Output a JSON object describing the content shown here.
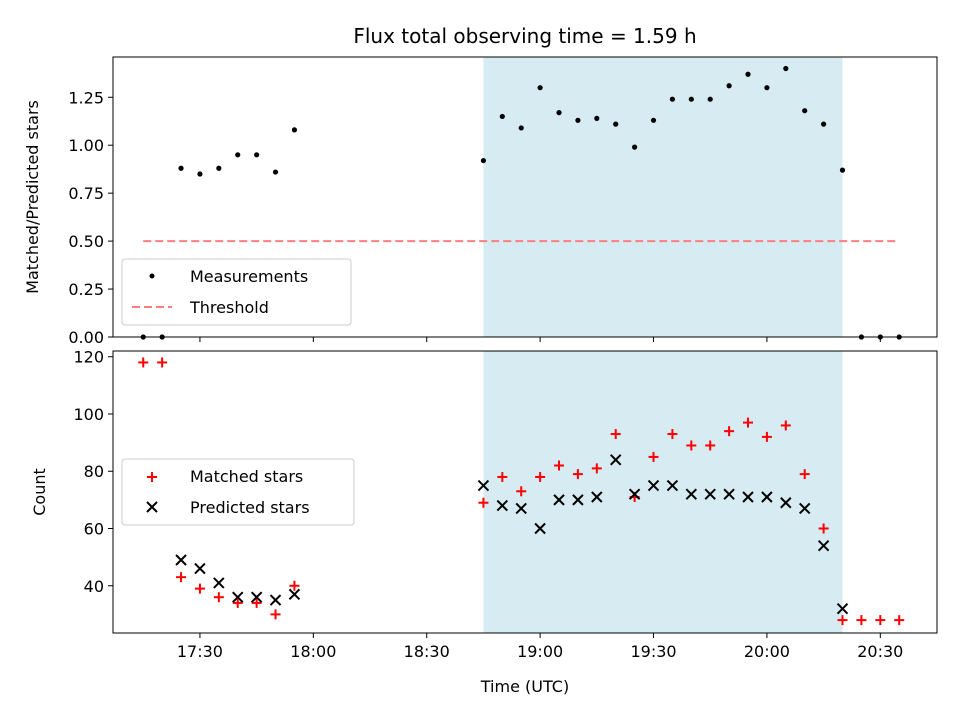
{
  "colors": {
    "highlight": "#add8e6",
    "threshold": "#ff7f7f",
    "matched": "#ff0000",
    "predicted": "#000000",
    "measurement": "#000000"
  },
  "chart_data": [
    {
      "type": "scatter",
      "title": "Flux total observing time = 1.59 h",
      "xlabel": "",
      "ylabel": "Matched/Predicted stars",
      "xlim": [
        "17:07",
        "20:45"
      ],
      "ylim": [
        0,
        1.46
      ],
      "xticks": [
        "17:30",
        "18:00",
        "18:30",
        "19:00",
        "19:30",
        "20:00",
        "20:30"
      ],
      "yticks": [
        "0.00",
        "0.25",
        "0.50",
        "0.75",
        "1.00",
        "1.25"
      ],
      "highlight_span": [
        "18:45",
        "20:20"
      ],
      "grid": false,
      "legend_position": "lower-left",
      "series": [
        {
          "name": "Measurements",
          "x": [
            "17:15",
            "17:20",
            "17:25",
            "17:30",
            "17:35",
            "17:40",
            "17:45",
            "17:50",
            "17:55",
            "18:45",
            "18:50",
            "18:55",
            "19:00",
            "19:05",
            "19:10",
            "19:15",
            "19:20",
            "19:25",
            "19:30",
            "19:35",
            "19:40",
            "19:45",
            "19:50",
            "19:55",
            "20:00",
            "20:05",
            "20:10",
            "20:15",
            "20:20",
            "20:25",
            "20:30",
            "20:35"
          ],
          "y": [
            0,
            0,
            0.88,
            0.85,
            0.88,
            0.95,
            0.95,
            0.86,
            1.08,
            0.92,
            1.15,
            1.09,
            1.3,
            1.17,
            1.13,
            1.14,
            1.11,
            0.99,
            1.13,
            1.24,
            1.24,
            1.24,
            1.31,
            1.37,
            1.3,
            1.4,
            1.18,
            1.11,
            0.87,
            0,
            0,
            0
          ]
        },
        {
          "name": "Threshold",
          "x": [
            "17:15",
            "20:35"
          ],
          "y": [
            0.5,
            0.5
          ]
        }
      ]
    },
    {
      "type": "scatter",
      "title": "",
      "xlabel": "Time (UTC)",
      "ylabel": "Count",
      "xlim": [
        "17:07",
        "20:45"
      ],
      "ylim": [
        23.5,
        122
      ],
      "xticks": [
        "17:30",
        "18:00",
        "18:30",
        "19:00",
        "19:30",
        "20:00",
        "20:30"
      ],
      "yticks": [
        "40",
        "60",
        "80",
        "100",
        "120"
      ],
      "highlight_span": [
        "18:45",
        "20:20"
      ],
      "grid": false,
      "legend_position": "center-left",
      "series": [
        {
          "name": "Matched stars",
          "x": [
            "17:15",
            "17:20",
            "17:25",
            "17:30",
            "17:35",
            "17:40",
            "17:45",
            "17:50",
            "17:55",
            "18:45",
            "18:50",
            "18:55",
            "19:00",
            "19:05",
            "19:10",
            "19:15",
            "19:20",
            "19:25",
            "19:30",
            "19:35",
            "19:40",
            "19:45",
            "19:50",
            "19:55",
            "20:00",
            "20:05",
            "20:10",
            "20:15",
            "20:20",
            "20:25",
            "20:30",
            "20:35"
          ],
          "y": [
            118,
            118,
            43,
            39,
            36,
            34,
            34,
            30,
            40,
            69,
            78,
            73,
            78,
            82,
            79,
            81,
            93,
            71,
            85,
            93,
            89,
            89,
            94,
            97,
            92,
            96,
            79,
            60,
            28,
            28,
            28,
            28
          ]
        },
        {
          "name": "Predicted stars",
          "x": [
            "17:25",
            "17:30",
            "17:35",
            "17:40",
            "17:45",
            "17:50",
            "17:55",
            "18:45",
            "18:50",
            "18:55",
            "19:00",
            "19:05",
            "19:10",
            "19:15",
            "19:20",
            "19:25",
            "19:30",
            "19:35",
            "19:40",
            "19:45",
            "19:50",
            "19:55",
            "20:00",
            "20:05",
            "20:10",
            "20:15",
            "20:20"
          ],
          "y": [
            49,
            46,
            41,
            36,
            36,
            35,
            37,
            75,
            68,
            67,
            60,
            70,
            70,
            71,
            84,
            72,
            75,
            75,
            72,
            72,
            72,
            71,
            71,
            69,
            67,
            54,
            32
          ]
        }
      ]
    }
  ]
}
